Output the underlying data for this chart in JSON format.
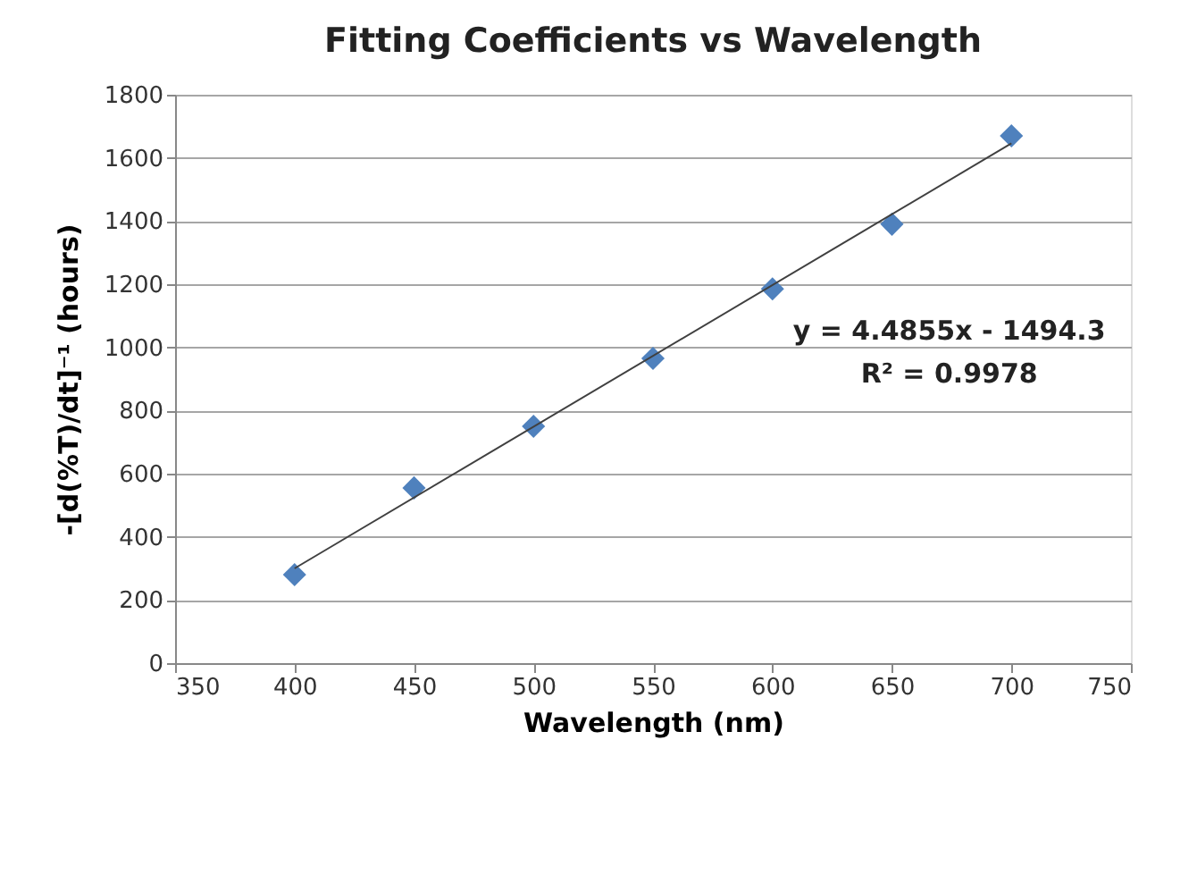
{
  "chart_data": {
    "type": "scatter",
    "title": "Fitting Coefficients vs Wavelength",
    "xlabel": "Wavelength (nm)",
    "ylabel": "-[d(%T)/dt]⁻¹   (hours)",
    "x": [
      400,
      450,
      500,
      550,
      600,
      650,
      700
    ],
    "series": [
      {
        "color": "#4f81bd",
        "marker": "diamond",
        "values": [
          280,
          555,
          750,
          965,
          1185,
          1390,
          1670
        ]
      },
      {
        "type": "line",
        "color": "#404040",
        "line_style": "solid",
        "marker": "none",
        "x": [
          400,
          700
        ],
        "values": [
          300,
          1646
        ]
      }
    ],
    "xlim": [
      350,
      750
    ],
    "xticks": [
      350,
      400,
      450,
      500,
      550,
      600,
      650,
      700,
      750
    ],
    "ylim": [
      0,
      1800
    ],
    "yticks": [
      0,
      200,
      400,
      600,
      800,
      1000,
      1200,
      1400,
      1600,
      1800
    ],
    "grid": "y",
    "annotations": [
      "y = 4.4855x - 1494.3",
      "R² = 0.9978"
    ]
  }
}
